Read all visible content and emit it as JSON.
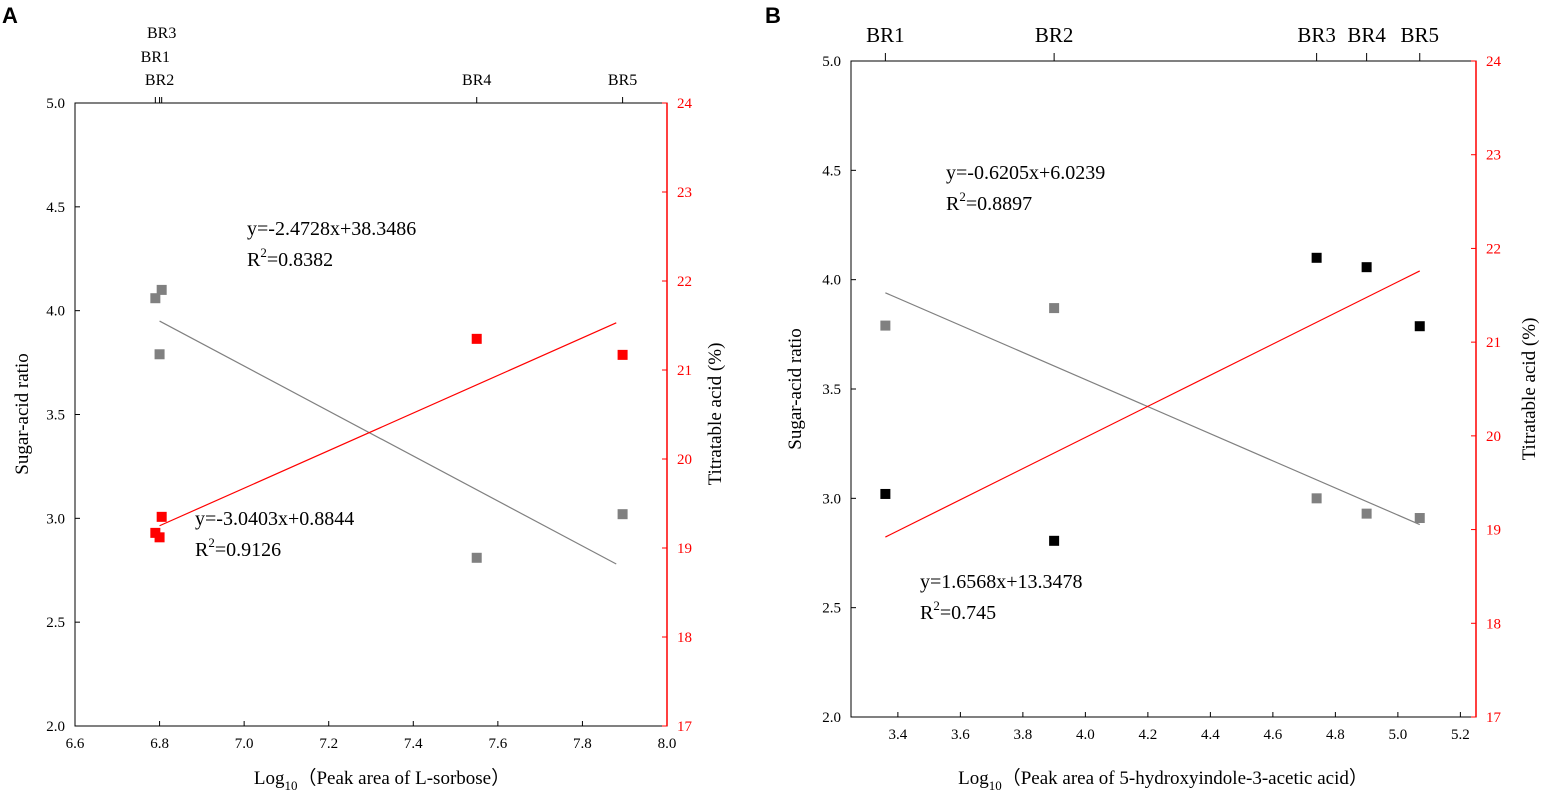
{
  "chart_data": [
    {
      "panel_label": "A",
      "type": "scatter",
      "x_range": [
        6.6,
        8.0
      ],
      "x_ticks": [
        "6.6",
        "6.8",
        "7.0",
        "7.2",
        "7.4",
        "7.6",
        "7.8",
        "8.0"
      ],
      "x_label_prefix": "Log",
      "x_label_sub": "10",
      "x_label_text": "（Peak area of L-sorbose）",
      "y_left_label": "Sugar-acid ratio",
      "y_left_range": [
        2.0,
        5.0
      ],
      "y_left_ticks": [
        "2.0",
        "2.5",
        "3.0",
        "3.5",
        "4.0",
        "4.5",
        "5.0"
      ],
      "y_right_label": "Titratable acid (%)",
      "y_right_range": [
        17,
        24
      ],
      "y_right_ticks": [
        "17",
        "18",
        "19",
        "20",
        "21",
        "22",
        "23",
        "24"
      ],
      "top_axis": [
        {
          "label": "BR3",
          "x": 6.805,
          "row": 0
        },
        {
          "label": "BR1",
          "x": 6.79,
          "row": 1
        },
        {
          "label": "BR2",
          "x": 6.8,
          "row": 2
        },
        {
          "label": "BR4",
          "x": 7.55,
          "row": 2
        },
        {
          "label": "BR5",
          "x": 7.895,
          "row": 2
        }
      ],
      "series": [
        {
          "name": "Sugar-acid ratio",
          "axis": "left",
          "color": "#808080",
          "points": [
            [
              6.79,
              4.06
            ],
            [
              6.805,
              4.1
            ],
            [
              6.8,
              3.79
            ],
            [
              7.55,
              2.81
            ],
            [
              7.895,
              3.02
            ]
          ],
          "fit": {
            "x": [
              6.8,
              7.88
            ],
            "y": [
              3.95,
              2.78
            ]
          }
        },
        {
          "name": "Titratable acid",
          "axis": "right",
          "color": "#ff0000",
          "points": [
            [
              6.79,
              19.17
            ],
            [
              6.8,
              19.12
            ],
            [
              6.805,
              19.35
            ],
            [
              7.55,
              21.35
            ],
            [
              7.895,
              21.17
            ]
          ],
          "fit": {
            "x": [
              6.8,
              7.88
            ],
            "y": [
              19.25,
              21.53
            ]
          }
        }
      ],
      "annotations": [
        {
          "eq": "y=-2.4728x+38.3486",
          "r2_prefix": "R",
          "r2_sup": "2",
          "r2_value": "=0.8382"
        },
        {
          "eq": "y=-3.0403x+0.8844",
          "r2_prefix": "R",
          "r2_sup": "2",
          "r2_value": "=0.9126"
        }
      ],
      "colors": {
        "left_axis": "#000000",
        "right_axis": "#ff0000"
      }
    },
    {
      "panel_label": "B",
      "type": "scatter",
      "x_range": [
        3.25,
        5.25
      ],
      "x_ticks": [
        "3.4",
        "3.6",
        "3.8",
        "4.0",
        "4.2",
        "4.4",
        "4.6",
        "4.8",
        "5.0",
        "5.2"
      ],
      "x_label_prefix": "Log",
      "x_label_sub": "10",
      "x_label_text": "（Peak area of 5-hydroxyindole-3-acetic acid）",
      "y_left_label": "Sugar-acid ratio",
      "y_left_range": [
        2.0,
        5.0
      ],
      "y_left_ticks": [
        "2.0",
        "2.5",
        "3.0",
        "3.5",
        "4.0",
        "4.5",
        "5.0"
      ],
      "y_right_label": "Titratable acid (%)",
      "y_right_range": [
        17,
        24
      ],
      "y_right_ticks": [
        "17",
        "18",
        "19",
        "20",
        "21",
        "22",
        "23",
        "24"
      ],
      "top_axis": [
        {
          "label": "BR1",
          "x": 3.36,
          "row": 0
        },
        {
          "label": "BR2",
          "x": 3.9,
          "row": 0
        },
        {
          "label": "BR3",
          "x": 4.74,
          "row": 0
        },
        {
          "label": "BR4",
          "x": 4.9,
          "row": 0
        },
        {
          "label": "BR5",
          "x": 5.07,
          "row": 0
        }
      ],
      "series": [
        {
          "name": "Sugar-acid ratio",
          "axis": "left",
          "color": "#808080",
          "points": [
            [
              3.36,
              3.79
            ],
            [
              3.9,
              3.87
            ],
            [
              4.74,
              3.0
            ],
            [
              4.9,
              2.93
            ],
            [
              5.07,
              2.91
            ]
          ],
          "fit": {
            "x": [
              3.36,
              5.07
            ],
            "y": [
              3.94,
              2.88
            ]
          }
        },
        {
          "name": "Titratable acid",
          "axis": "right",
          "color": "#000000",
          "points": [
            [
              3.36,
              19.38
            ],
            [
              3.9,
              18.88
            ],
            [
              4.74,
              21.9
            ],
            [
              4.9,
              21.8
            ],
            [
              5.07,
              21.17
            ]
          ],
          "fit": {
            "x": [
              3.36,
              5.07
            ],
            "y": [
              18.92,
              21.76
            ]
          }
        }
      ],
      "annotations": [
        {
          "eq": "y=-0.6205x+6.0239",
          "r2_prefix": "R",
          "r2_sup": "2",
          "r2_value": "=0.8897"
        },
        {
          "eq": "y=1.6568x+13.3478",
          "r2_prefix": "R",
          "r2_sup": "2",
          "r2_value": "=0.745"
        }
      ],
      "colors": {
        "left_axis": "#000000",
        "right_axis": "#ff0000",
        "fit_right": "#ff0000"
      }
    }
  ]
}
